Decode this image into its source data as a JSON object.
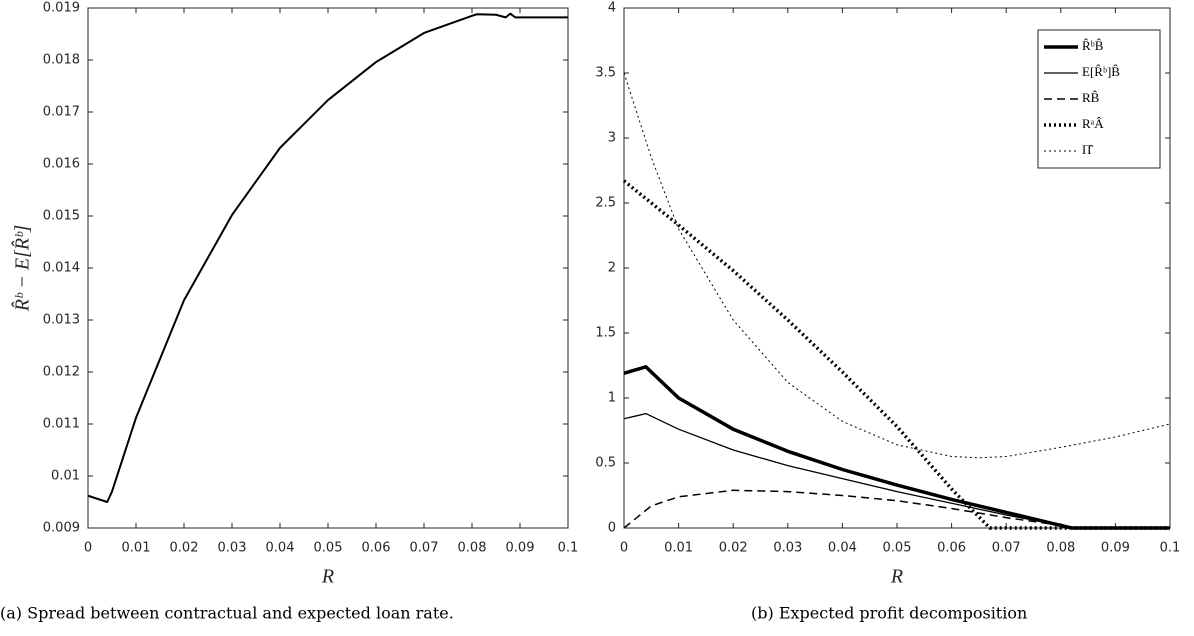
{
  "chart_data": [
    {
      "type": "line",
      "xlabel": "R",
      "ylabel": "R̂ᵇ − E[R̂ᵇ]",
      "caption": "(a) Spread between contractual and expected loan rate.",
      "color": "#000000",
      "linewidth": 2,
      "x": [
        0,
        0.004,
        0.005,
        0.01,
        0.02,
        0.03,
        0.04,
        0.05,
        0.06,
        0.07,
        0.08,
        0.081,
        0.085,
        0.087,
        0.088,
        0.089,
        0.09,
        0.1
      ],
      "values": [
        0.00962,
        0.0095,
        0.0097,
        0.01112,
        0.01338,
        0.01502,
        0.01631,
        0.01723,
        0.01796,
        0.01852,
        0.01885,
        0.01888,
        0.01887,
        0.01882,
        0.01889,
        0.01882,
        0.01882,
        0.01882
      ],
      "xlim": [
        0,
        0.1
      ],
      "xticks": [
        0,
        0.01,
        0.02,
        0.03,
        0.04,
        0.05,
        0.06,
        0.07,
        0.08,
        0.09,
        0.1
      ],
      "ylim": [
        0.009,
        0.019
      ],
      "yticks": [
        0.009,
        0.01,
        0.011,
        0.012,
        0.013,
        0.014,
        0.015,
        0.016,
        0.017,
        0.018,
        0.019
      ],
      "grid": false
    },
    {
      "type": "line",
      "xlabel": "R",
      "caption": "(b) Expected profit decomposition",
      "legend": "upper right",
      "xlim": [
        0,
        0.1
      ],
      "xticks": [
        0,
        0.01,
        0.02,
        0.03,
        0.04,
        0.05,
        0.06,
        0.07,
        0.08,
        0.09,
        0.1
      ],
      "ylim": [
        0,
        4
      ],
      "yticks": [
        0,
        0.5,
        1,
        1.5,
        2,
        2.5,
        3,
        3.5,
        4
      ],
      "grid": false,
      "series": [
        {
          "name": "R̂ᵇB̂",
          "color": "#000000",
          "linewidth": 3.5,
          "linestyle": "solid",
          "x": [
            0,
            0.004,
            0.005,
            0.01,
            0.02,
            0.03,
            0.04,
            0.05,
            0.06,
            0.07,
            0.08,
            0.082,
            0.1
          ],
          "values": [
            1.19,
            1.24,
            1.2,
            1.0,
            0.76,
            0.59,
            0.45,
            0.33,
            0.22,
            0.12,
            0.02,
            0,
            0
          ]
        },
        {
          "name": "E[R̂ᵇ]B̂",
          "color": "#000000",
          "linewidth": 1.3,
          "linestyle": "solid",
          "x": [
            0,
            0.004,
            0.01,
            0.02,
            0.03,
            0.04,
            0.05,
            0.06,
            0.07,
            0.08,
            0.082,
            0.1
          ],
          "values": [
            0.84,
            0.88,
            0.76,
            0.6,
            0.48,
            0.38,
            0.28,
            0.19,
            0.1,
            0.02,
            0,
            0
          ]
        },
        {
          "name": "RB̂",
          "color": "#000000",
          "linewidth": 1.5,
          "linestyle": "dashed",
          "x": [
            0,
            0.005,
            0.01,
            0.02,
            0.03,
            0.04,
            0.05,
            0.06,
            0.07,
            0.08,
            0.082,
            0.1
          ],
          "values": [
            0,
            0.17,
            0.24,
            0.29,
            0.28,
            0.25,
            0.21,
            0.15,
            0.08,
            0.02,
            0,
            0
          ]
        },
        {
          "name": "RᵃÂ",
          "color": "#000000",
          "linewidth": 3.5,
          "linestyle": "dotted",
          "x": [
            0,
            0.01,
            0.02,
            0.03,
            0.04,
            0.05,
            0.06,
            0.067,
            0.1
          ],
          "values": [
            2.67,
            2.33,
            1.98,
            1.6,
            1.2,
            0.78,
            0.3,
            0,
            0
          ]
        },
        {
          "name": "Π̂",
          "color": "#000000",
          "linewidth": 1,
          "linestyle": "dotted",
          "x": [
            0,
            0.005,
            0.01,
            0.02,
            0.03,
            0.04,
            0.05,
            0.06,
            0.065,
            0.07,
            0.08,
            0.09,
            0.1
          ],
          "values": [
            3.5,
            2.85,
            2.3,
            1.6,
            1.12,
            0.82,
            0.64,
            0.55,
            0.54,
            0.55,
            0.62,
            0.7,
            0.8
          ]
        }
      ]
    }
  ]
}
